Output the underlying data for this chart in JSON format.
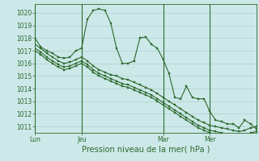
{
  "background_color": "#cce8e8",
  "grid_color": "#aacccc",
  "line_color": "#2d6a2d",
  "marker_color": "#2d6a2d",
  "xlabel": "Pression niveau de la mer( hPa )",
  "ylim": [
    1010.5,
    1020.7
  ],
  "yticks": [
    1011,
    1012,
    1013,
    1014,
    1015,
    1016,
    1017,
    1018,
    1019,
    1020
  ],
  "xlabel_fontsize": 7.0,
  "tick_fontsize": 5.5,
  "day_labels": [
    "Lun",
    "Jeu",
    "Mar",
    "Mer"
  ],
  "day_positions": [
    0,
    8,
    22,
    30
  ],
  "xlim": [
    0,
    38
  ],
  "series1_x": [
    0,
    1,
    2,
    3,
    4,
    5,
    6,
    7,
    8,
    9,
    10,
    11,
    12,
    13,
    14,
    15,
    16,
    17,
    18,
    19,
    20,
    21,
    22,
    23,
    24,
    25,
    26,
    27,
    28,
    29,
    30,
    31,
    32,
    33,
    34,
    35,
    36,
    37,
    38
  ],
  "series1_y": [
    1018.0,
    1017.3,
    1017.0,
    1016.8,
    1016.5,
    1016.4,
    1016.5,
    1017.0,
    1017.2,
    1019.5,
    1020.2,
    1020.3,
    1020.2,
    1019.2,
    1017.2,
    1016.0,
    1016.0,
    1016.2,
    1018.0,
    1018.1,
    1017.5,
    1017.2,
    1016.3,
    1015.2,
    1013.3,
    1013.2,
    1014.2,
    1013.3,
    1013.2,
    1013.2,
    1012.2,
    1011.5,
    1011.4,
    1011.2,
    1011.2,
    1010.9,
    1011.5,
    1011.2,
    1010.8
  ],
  "series2_x": [
    0,
    1,
    2,
    3,
    4,
    5,
    6,
    7,
    8,
    9,
    10,
    11,
    12,
    13,
    14,
    15,
    16,
    17,
    18,
    19,
    20,
    21,
    22,
    23,
    24,
    25,
    26,
    27,
    28,
    29,
    30,
    31,
    32,
    33,
    34,
    35,
    36,
    37,
    38
  ],
  "series2_y": [
    1017.5,
    1017.2,
    1016.8,
    1016.5,
    1016.2,
    1016.0,
    1016.1,
    1016.3,
    1016.5,
    1016.2,
    1015.8,
    1015.5,
    1015.3,
    1015.1,
    1015.0,
    1014.8,
    1014.7,
    1014.5,
    1014.3,
    1014.1,
    1013.9,
    1013.6,
    1013.3,
    1013.0,
    1012.7,
    1012.4,
    1012.1,
    1011.8,
    1011.5,
    1011.3,
    1011.1,
    1011.0,
    1010.9,
    1010.8,
    1010.7,
    1010.6,
    1010.7,
    1010.9,
    1011.0
  ],
  "series3_x": [
    0,
    1,
    2,
    3,
    4,
    5,
    6,
    7,
    8,
    9,
    10,
    11,
    12,
    13,
    14,
    15,
    16,
    17,
    18,
    19,
    20,
    21,
    22,
    23,
    24,
    25,
    26,
    27,
    28,
    29,
    30,
    31,
    32,
    33,
    34,
    35,
    36,
    37,
    38
  ],
  "series3_y": [
    1017.2,
    1016.9,
    1016.5,
    1016.2,
    1015.9,
    1015.7,
    1015.8,
    1016.0,
    1016.2,
    1015.9,
    1015.5,
    1015.2,
    1015.0,
    1014.8,
    1014.6,
    1014.4,
    1014.3,
    1014.1,
    1013.9,
    1013.7,
    1013.5,
    1013.2,
    1012.9,
    1012.6,
    1012.3,
    1012.0,
    1011.7,
    1011.4,
    1011.1,
    1010.9,
    1010.7,
    1010.6,
    1010.5,
    1010.4,
    1010.3,
    1010.2,
    1010.3,
    1010.5,
    1010.6
  ],
  "series4_x": [
    0,
    1,
    2,
    3,
    4,
    5,
    6,
    7,
    8,
    9,
    10,
    11,
    12,
    13,
    14,
    15,
    16,
    17,
    18,
    19,
    20,
    21,
    22,
    23,
    24,
    25,
    26,
    27,
    28,
    29,
    30,
    31,
    32,
    33,
    34,
    35,
    36,
    37,
    38
  ],
  "series4_y": [
    1017.0,
    1016.7,
    1016.3,
    1016.0,
    1015.7,
    1015.5,
    1015.6,
    1015.8,
    1016.0,
    1015.7,
    1015.3,
    1015.0,
    1014.8,
    1014.6,
    1014.4,
    1014.2,
    1014.1,
    1013.9,
    1013.7,
    1013.5,
    1013.3,
    1013.0,
    1012.7,
    1012.4,
    1012.1,
    1011.8,
    1011.5,
    1011.2,
    1010.9,
    1010.7,
    1010.5,
    1010.4,
    1010.3,
    1010.2,
    1010.1,
    1010.0,
    1010.1,
    1010.3,
    1010.4
  ]
}
